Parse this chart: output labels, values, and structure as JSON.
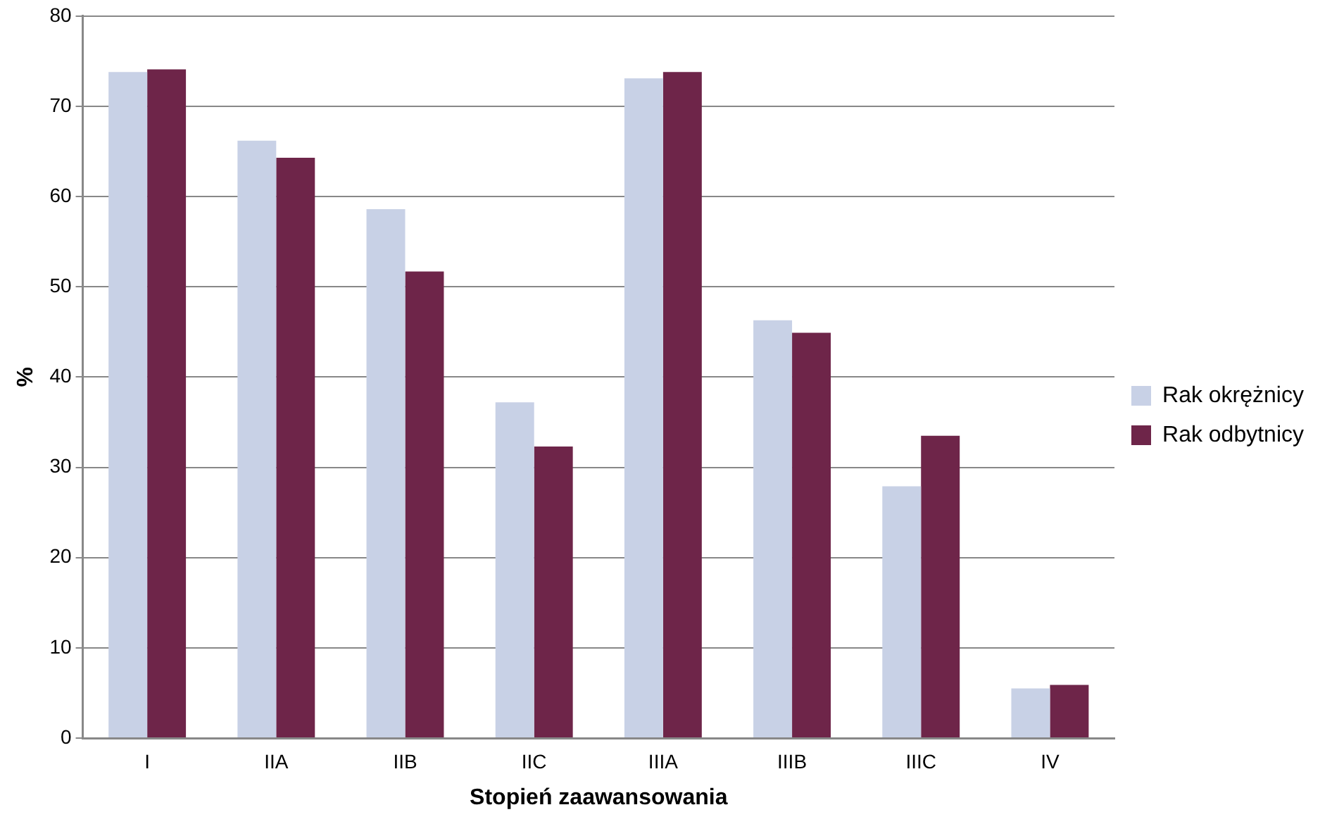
{
  "chart_data": {
    "type": "bar",
    "xlabel": "Stopień zaawansowania",
    "ylabel": "%",
    "categories": [
      "I",
      "IIA",
      "IIB",
      "IIC",
      "IIIA",
      "IIIB",
      "IIIC",
      "IV"
    ],
    "series": [
      {
        "name": "Rak okrężnicy",
        "color": "#c8d1e6",
        "values": [
          73.8,
          66.2,
          58.6,
          37.2,
          73.1,
          46.3,
          27.9,
          5.5
        ]
      },
      {
        "name": "Rak odbytnicy",
        "color": "#6e2549",
        "values": [
          74.1,
          64.3,
          51.7,
          32.3,
          73.8,
          44.9,
          33.5,
          5.9
        ]
      }
    ],
    "ylim": [
      0,
      80
    ],
    "yticks": [
      0,
      10,
      20,
      30,
      40,
      50,
      60,
      70,
      80
    ],
    "grid": "y",
    "legend": "right"
  }
}
